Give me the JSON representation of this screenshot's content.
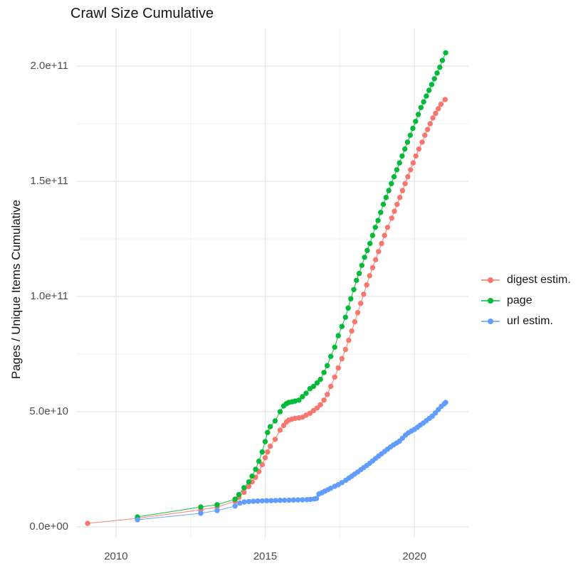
{
  "chart_data": {
    "type": "line",
    "markers": true,
    "title": "Crawl Size Cumulative",
    "xlabel": "",
    "ylabel": "Pages / Unique Items Cumulative",
    "value_unit": "1e9 (billions of pages / unique items)",
    "grid": "on",
    "background": "#ffffff",
    "gridline_color": "#e8e8e8",
    "legend": {
      "position": "right"
    },
    "x_axis": {
      "range": [
        2008.69,
        2021.81
      ],
      "major_ticks": [
        {
          "value": 2010,
          "label": "2010"
        },
        {
          "value": 2015,
          "label": "2015"
        },
        {
          "value": 2020,
          "label": "2020"
        }
      ],
      "minor_ticks": [
        2012.5,
        2017.5
      ]
    },
    "y_axis": {
      "range": [
        -4.94,
        216.36
      ],
      "major_ticks": [
        {
          "value": 0,
          "label": "0.0e+00"
        },
        {
          "value": 50,
          "label": "5.0e+10"
        },
        {
          "value": 100,
          "label": "1.0e+11"
        },
        {
          "value": 150,
          "label": "1.5e+11"
        },
        {
          "value": 200,
          "label": "2.0e+11"
        }
      ],
      "minor_ticks": [
        25,
        75,
        125,
        175
      ]
    },
    "series": [
      {
        "name": "digest estim.",
        "color": "#F8766D",
        "points": [
          [
            2009.05,
            1.5
          ],
          [
            2010.72,
            3.7
          ],
          [
            2012.84,
            7.4
          ],
          [
            2013.39,
            8.6
          ],
          [
            2013.99,
            11.1
          ],
          [
            2014.12,
            12.8
          ],
          [
            2014.29,
            15.0
          ],
          [
            2014.45,
            17.5
          ],
          [
            2014.56,
            19.5
          ],
          [
            2014.68,
            21.5
          ],
          [
            2014.79,
            24.0
          ],
          [
            2014.9,
            27.0
          ],
          [
            2015.0,
            30.0
          ],
          [
            2015.08,
            32.5
          ],
          [
            2015.17,
            35.0
          ],
          [
            2015.33,
            38.0
          ],
          [
            2015.5,
            42.0
          ],
          [
            2015.62,
            44.0
          ],
          [
            2015.71,
            45.5
          ],
          [
            2015.79,
            46.3
          ],
          [
            2015.9,
            46.8
          ],
          [
            2016.0,
            47.1
          ],
          [
            2016.13,
            47.3
          ],
          [
            2016.25,
            47.6
          ],
          [
            2016.37,
            48.5
          ],
          [
            2016.5,
            49.3
          ],
          [
            2016.62,
            50.5
          ],
          [
            2016.74,
            51.6
          ],
          [
            2016.85,
            53.0
          ],
          [
            2016.97,
            55.0
          ],
          [
            2017.08,
            57.5
          ],
          [
            2017.2,
            61.0
          ],
          [
            2017.33,
            65.0
          ],
          [
            2017.45,
            69.0
          ],
          [
            2017.57,
            73.0
          ],
          [
            2017.69,
            77.0
          ],
          [
            2017.8,
            81.0
          ],
          [
            2017.9,
            85.0
          ],
          [
            2018.0,
            89.0
          ],
          [
            2018.1,
            93.0
          ],
          [
            2018.2,
            97.0
          ],
          [
            2018.3,
            101.0
          ],
          [
            2018.4,
            105.0
          ],
          [
            2018.5,
            109.0
          ],
          [
            2018.6,
            112.5
          ],
          [
            2018.7,
            116.0
          ],
          [
            2018.8,
            119.5
          ],
          [
            2018.9,
            123.0
          ],
          [
            2019.0,
            126.5
          ],
          [
            2019.1,
            130.0
          ],
          [
            2019.24,
            134.0
          ],
          [
            2019.33,
            137.0
          ],
          [
            2019.42,
            140.0
          ],
          [
            2019.51,
            143.0
          ],
          [
            2019.6,
            146.0
          ],
          [
            2019.69,
            149.0
          ],
          [
            2019.78,
            152.0
          ],
          [
            2019.87,
            155.0
          ],
          [
            2019.96,
            158.0
          ],
          [
            2020.05,
            161.0
          ],
          [
            2020.15,
            164.0
          ],
          [
            2020.26,
            167.0
          ],
          [
            2020.35,
            170.0
          ],
          [
            2020.44,
            172.5
          ],
          [
            2020.53,
            175.0
          ],
          [
            2020.62,
            177.5
          ],
          [
            2020.71,
            179.5
          ],
          [
            2020.8,
            181.5
          ],
          [
            2020.89,
            183.5
          ],
          [
            2021.03,
            185.5
          ]
        ]
      },
      {
        "name": "page",
        "color": "#00BA38",
        "points": [
          [
            2010.72,
            4.3
          ],
          [
            2012.84,
            8.6
          ],
          [
            2013.39,
            9.6
          ],
          [
            2013.99,
            12.0
          ],
          [
            2014.12,
            14.0
          ],
          [
            2014.29,
            17.0
          ],
          [
            2014.45,
            19.5
          ],
          [
            2014.56,
            22.0
          ],
          [
            2014.68,
            25.0
          ],
          [
            2014.79,
            28.5
          ],
          [
            2014.9,
            32.5
          ],
          [
            2015.0,
            37.0
          ],
          [
            2015.08,
            41.0
          ],
          [
            2015.17,
            43.5
          ],
          [
            2015.33,
            46.0
          ],
          [
            2015.5,
            50.0
          ],
          [
            2015.62,
            52.5
          ],
          [
            2015.71,
            53.5
          ],
          [
            2015.79,
            54.0
          ],
          [
            2015.9,
            54.3
          ],
          [
            2016.0,
            54.6
          ],
          [
            2016.13,
            55.0
          ],
          [
            2016.25,
            56.5
          ],
          [
            2016.37,
            58.0
          ],
          [
            2016.5,
            60.0
          ],
          [
            2016.62,
            61.0
          ],
          [
            2016.74,
            62.5
          ],
          [
            2016.85,
            64.0
          ],
          [
            2016.97,
            67.0
          ],
          [
            2017.08,
            70.0
          ],
          [
            2017.2,
            74.0
          ],
          [
            2017.33,
            78.0
          ],
          [
            2017.45,
            83.0
          ],
          [
            2017.57,
            87.0
          ],
          [
            2017.69,
            91.0
          ],
          [
            2017.78,
            95.0
          ],
          [
            2017.87,
            99.0
          ],
          [
            2017.97,
            103.0
          ],
          [
            2018.06,
            107.0
          ],
          [
            2018.15,
            110.0
          ],
          [
            2018.24,
            113.5
          ],
          [
            2018.33,
            117.0
          ],
          [
            2018.42,
            120.0
          ],
          [
            2018.51,
            123.0
          ],
          [
            2018.6,
            126.5
          ],
          [
            2018.69,
            130.0
          ],
          [
            2018.78,
            133.0
          ],
          [
            2018.87,
            136.5
          ],
          [
            2018.96,
            140.0
          ],
          [
            2019.05,
            143.0
          ],
          [
            2019.14,
            146.0
          ],
          [
            2019.23,
            149.0
          ],
          [
            2019.32,
            152.0
          ],
          [
            2019.41,
            155.0
          ],
          [
            2019.5,
            158.0
          ],
          [
            2019.59,
            161.0
          ],
          [
            2019.68,
            164.0
          ],
          [
            2019.77,
            167.0
          ],
          [
            2019.86,
            170.0
          ],
          [
            2019.95,
            173.0
          ],
          [
            2020.04,
            176.0
          ],
          [
            2020.13,
            179.0
          ],
          [
            2020.22,
            182.0
          ],
          [
            2020.31,
            184.5
          ],
          [
            2020.4,
            187.0
          ],
          [
            2020.49,
            189.5
          ],
          [
            2020.58,
            192.0
          ],
          [
            2020.67,
            194.5
          ],
          [
            2020.76,
            197.0
          ],
          [
            2020.85,
            199.5
          ],
          [
            2020.94,
            202.5
          ],
          [
            2021.05,
            205.8
          ]
        ]
      },
      {
        "name": "url estim.",
        "color": "#619CFF",
        "points": [
          [
            2010.72,
            3.1
          ],
          [
            2012.84,
            5.9
          ],
          [
            2013.39,
            7.1
          ],
          [
            2013.99,
            9.0
          ],
          [
            2014.15,
            10.3
          ],
          [
            2014.3,
            10.8
          ],
          [
            2014.45,
            11.0
          ],
          [
            2014.6,
            11.1
          ],
          [
            2014.75,
            11.2
          ],
          [
            2014.9,
            11.3
          ],
          [
            2015.05,
            11.35
          ],
          [
            2015.2,
            11.4
          ],
          [
            2015.35,
            11.45
          ],
          [
            2015.5,
            11.5
          ],
          [
            2015.65,
            11.55
          ],
          [
            2015.8,
            11.6
          ],
          [
            2015.95,
            11.65
          ],
          [
            2016.1,
            11.7
          ],
          [
            2016.25,
            11.75
          ],
          [
            2016.4,
            11.8
          ],
          [
            2016.52,
            11.9
          ],
          [
            2016.64,
            12.1
          ],
          [
            2016.72,
            12.3
          ],
          [
            2016.8,
            14.3
          ],
          [
            2016.9,
            14.8
          ],
          [
            2017.0,
            15.5
          ],
          [
            2017.1,
            16.1
          ],
          [
            2017.2,
            16.8
          ],
          [
            2017.33,
            17.6
          ],
          [
            2017.45,
            18.3
          ],
          [
            2017.57,
            19.2
          ],
          [
            2017.7,
            20.2
          ],
          [
            2017.8,
            21.1
          ],
          [
            2017.9,
            22.0
          ],
          [
            2018.0,
            22.9
          ],
          [
            2018.1,
            23.8
          ],
          [
            2018.2,
            24.8
          ],
          [
            2018.3,
            25.7
          ],
          [
            2018.4,
            26.6
          ],
          [
            2018.5,
            27.6
          ],
          [
            2018.6,
            28.6
          ],
          [
            2018.7,
            29.7
          ],
          [
            2018.8,
            30.7
          ],
          [
            2018.9,
            31.7
          ],
          [
            2019.0,
            32.7
          ],
          [
            2019.1,
            33.7
          ],
          [
            2019.2,
            34.7
          ],
          [
            2019.3,
            35.6
          ],
          [
            2019.4,
            36.4
          ],
          [
            2019.5,
            37.2
          ],
          [
            2019.6,
            38.5
          ],
          [
            2019.7,
            39.8
          ],
          [
            2019.8,
            40.8
          ],
          [
            2019.9,
            41.6
          ],
          [
            2020.0,
            42.3
          ],
          [
            2020.1,
            43.2
          ],
          [
            2020.2,
            44.2
          ],
          [
            2020.3,
            45.1
          ],
          [
            2020.4,
            46.1
          ],
          [
            2020.5,
            47.1
          ],
          [
            2020.6,
            48.1
          ],
          [
            2020.7,
            49.4
          ],
          [
            2020.8,
            50.9
          ],
          [
            2020.9,
            52.3
          ],
          [
            2021.0,
            53.4
          ],
          [
            2021.05,
            54.0
          ]
        ]
      }
    ]
  }
}
